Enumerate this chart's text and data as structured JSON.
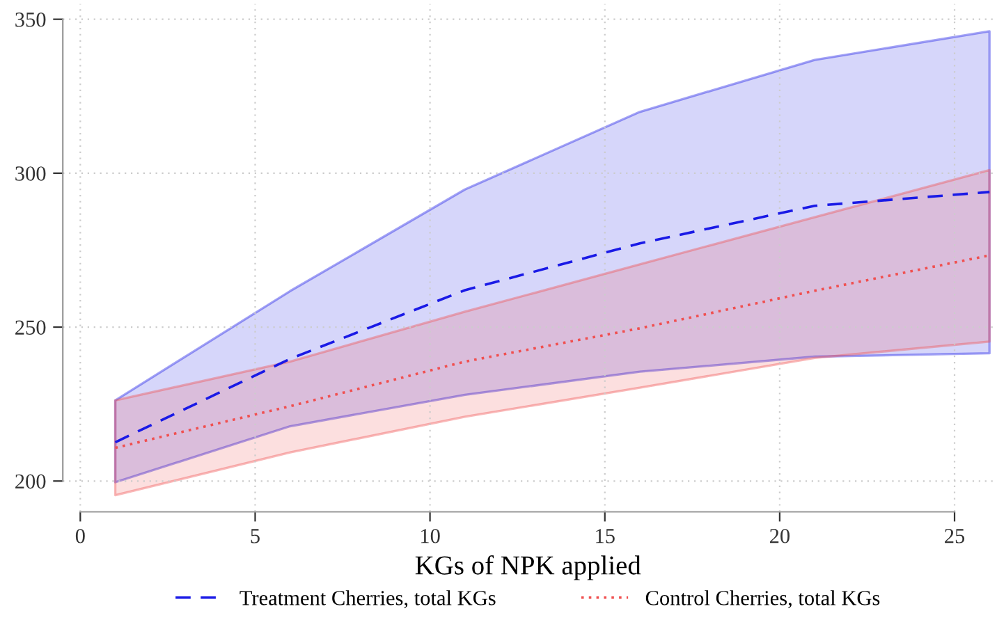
{
  "chart_data": {
    "type": "line",
    "xlabel": "KGs of NPK applied",
    "x": [
      1,
      6,
      11,
      16,
      21,
      26
    ],
    "series": [
      {
        "name": "Treatment Cherries, total KGs",
        "color": "#1a1ae6",
        "line_style": "dashed",
        "values": [
          212.6,
          239.7,
          262.0,
          277.2,
          289.4,
          293.9
        ],
        "lower": [
          199.6,
          217.8,
          228.0,
          235.5,
          240.4,
          241.5
        ],
        "upper": [
          226.2,
          261.7,
          294.7,
          319.9,
          336.8,
          346.1
        ]
      },
      {
        "name": "Control Cherries, total KGs",
        "color": "#f05050",
        "line_style": "dotted",
        "values": [
          210.8,
          224.3,
          238.8,
          249.6,
          261.8,
          273.3
        ],
        "lower": [
          195.4,
          209.3,
          220.9,
          230.3,
          240.0,
          245.3
        ],
        "upper": [
          226.2,
          238.8,
          255.0,
          270.4,
          285.7,
          301.0
        ]
      }
    ],
    "xlim": [
      -0.5,
      26.1
    ],
    "ylim": [
      190,
      355
    ],
    "xticks": [
      0,
      5,
      10,
      15,
      20,
      25
    ],
    "yticks": [
      200,
      250,
      300,
      350
    ],
    "grid": true,
    "legend": "bottom"
  }
}
